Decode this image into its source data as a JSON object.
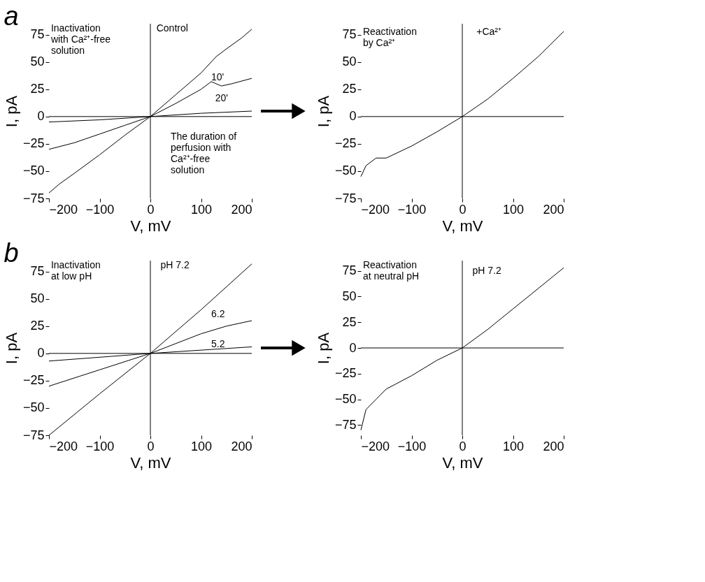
{
  "chart_data": [
    {
      "type": "line",
      "title": "a",
      "xlabel": "V, mV",
      "ylabel": "I, pA",
      "xlim": [
        -200,
        200
      ],
      "ylim": [
        -75,
        85
      ],
      "xticks": [
        -200,
        -100,
        0,
        100,
        200
      ],
      "yticks": [
        -75,
        -50,
        -25,
        0,
        25,
        50,
        75
      ],
      "series": [
        {
          "color": "#000000",
          "x": [
            -200,
            -180,
            -150,
            -100,
            -50,
            0,
            50,
            100,
            130,
            150,
            180,
            200
          ],
          "values": [
            -70,
            -62,
            -52,
            -35,
            -17,
            0,
            20,
            40,
            55,
            62,
            72,
            80
          ]
        },
        {
          "color": "#000000",
          "x": [
            -200,
            -150,
            -100,
            -50,
            0,
            50,
            100,
            120,
            140,
            160,
            200
          ],
          "values": [
            -30,
            -24,
            -16,
            -8,
            0,
            12,
            25,
            32,
            28,
            30,
            35
          ]
        },
        {
          "color": "#000000",
          "x": [
            -200,
            -100,
            0,
            100,
            200
          ],
          "values": [
            -5,
            -3,
            0,
            3,
            5
          ]
        }
      ],
      "annotations": [
        "Inactivation\nwith Ca²⁺-free\nsolution",
        "Control",
        "10'",
        "20'",
        "The duration of\nperfusion with\nCa²⁺-free\nsolution"
      ]
    },
    {
      "type": "line",
      "xlabel": "V, mV",
      "ylabel": "I, pA",
      "xlim": [
        -200,
        200
      ],
      "ylim": [
        -75,
        85
      ],
      "xticks": [
        -200,
        -100,
        0,
        100,
        200
      ],
      "yticks": [
        -75,
        -50,
        -25,
        0,
        25,
        50,
        75
      ],
      "series": [
        {
          "color": "#000000",
          "x": [
            -200,
            -190,
            -170,
            -150,
            -100,
            -50,
            0,
            50,
            100,
            150,
            200
          ],
          "values": [
            -55,
            -45,
            -38,
            -38,
            -27,
            -14,
            0,
            16,
            35,
            55,
            78
          ]
        }
      ],
      "annotations": [
        "Reactivation\nby Ca²⁺",
        "+Ca²⁺"
      ]
    },
    {
      "type": "line",
      "title": "b",
      "xlabel": "V, mV",
      "ylabel": "I, pA",
      "xlim": [
        -200,
        200
      ],
      "ylim": [
        -75,
        85
      ],
      "xticks": [
        -200,
        -100,
        0,
        100,
        200
      ],
      "yticks": [
        -75,
        -50,
        -25,
        0,
        25,
        50,
        75
      ],
      "series": [
        {
          "color": "#000000",
          "x": [
            -200,
            -100,
            0,
            100,
            200
          ],
          "values": [
            -75,
            -37,
            0,
            40,
            82
          ]
        },
        {
          "color": "#000000",
          "x": [
            -200,
            -100,
            0,
            100,
            150,
            200
          ],
          "values": [
            -30,
            -15,
            0,
            18,
            25,
            30
          ]
        },
        {
          "color": "#000000",
          "x": [
            -200,
            0,
            200
          ],
          "values": [
            -7,
            0,
            6
          ]
        }
      ],
      "annotations": [
        "Inactivation\nat low pH",
        "pH 7.2",
        "6.2",
        "5.2"
      ]
    },
    {
      "type": "line",
      "xlabel": "V, mV",
      "ylabel": "I, pA",
      "xlim": [
        -200,
        200
      ],
      "ylim": [
        -85,
        85
      ],
      "xticks": [
        -200,
        -100,
        0,
        100,
        200
      ],
      "yticks": [
        -75,
        -50,
        -25,
        0,
        25,
        50,
        75
      ],
      "series": [
        {
          "color": "#000000",
          "x": [
            -200,
            -190,
            -170,
            -150,
            -100,
            -50,
            0,
            50,
            100,
            150,
            200
          ],
          "values": [
            -80,
            -60,
            -50,
            -40,
            -27,
            -12,
            0,
            18,
            38,
            58,
            78
          ]
        }
      ],
      "annotations": [
        "Reactivation\nat neutral pH",
        "pH 7.2"
      ]
    }
  ]
}
